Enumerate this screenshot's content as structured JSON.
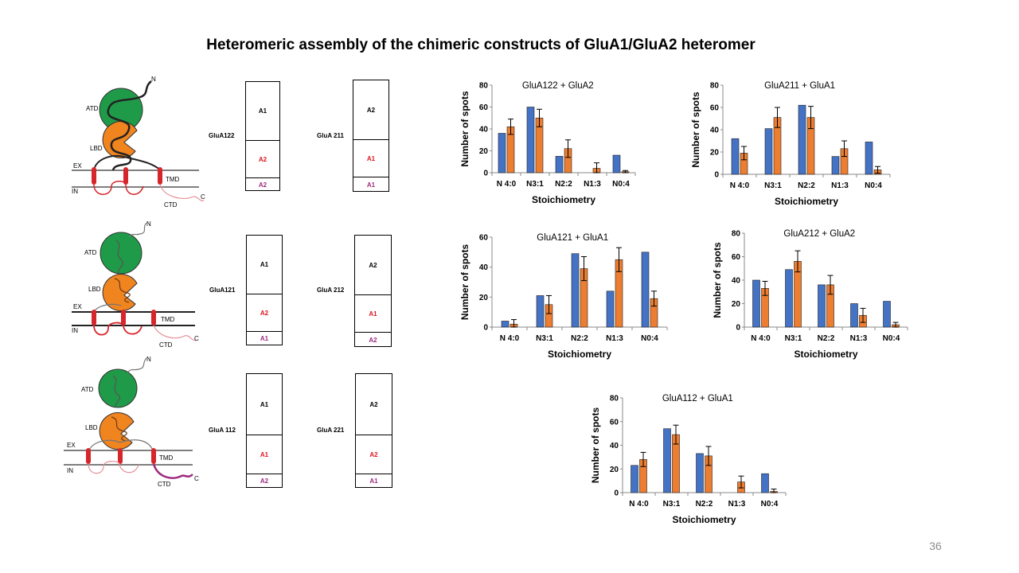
{
  "slide": {
    "title": "Heteromeric assembly of the chimeric constructs of GluA1/GluA2 heteromer",
    "number": "36"
  },
  "schematic_labels": {
    "n": "N",
    "c": "C",
    "atd": "ATD",
    "lbd": "LBD",
    "tmd": "TMD",
    "ctd": "CTD",
    "ex": "EX",
    "in": "IN"
  },
  "colors": {
    "atd": "#1f9a48",
    "lbd": "#f0841f",
    "tmd": "#d6252b",
    "blue_bar": "#4472c4",
    "orange_bar": "#ed7d31",
    "a1_red": "#e0141e",
    "a2_purple": "#9b2b7f"
  },
  "constructs": [
    {
      "name": "GluA122",
      "segments": [
        "A1",
        "A2",
        "A2"
      ]
    },
    {
      "name": "GluA 211",
      "segments": [
        "A2",
        "A1",
        "A1"
      ]
    },
    {
      "name": "GluA121",
      "segments": [
        "A1",
        "A2",
        "A1"
      ]
    },
    {
      "name": "GluA 212",
      "segments": [
        "A2",
        "A1",
        "A2"
      ]
    },
    {
      "name": "GluA 112",
      "segments": [
        "A1",
        "A1",
        "A2"
      ]
    },
    {
      "name": "GluA 221",
      "segments": [
        "A2",
        "A2",
        "A1"
      ]
    }
  ],
  "chart_data": [
    {
      "type": "bar",
      "title": "GluA122  + GluA2",
      "xlabel": "Stoichiometry",
      "ylabel": "Number of spots",
      "categories": [
        "N 4:0",
        "N3:1",
        "N2:2",
        "N1:3",
        "N0:4"
      ],
      "ylim": [
        0,
        80
      ],
      "yticks": [
        0,
        20,
        40,
        60,
        80
      ],
      "series": [
        {
          "values": [
            36,
            60,
            15,
            0,
            16
          ]
        },
        {
          "values": [
            42,
            50,
            22,
            4,
            1
          ],
          "errors": [
            7,
            8,
            8,
            5,
            1
          ]
        }
      ]
    },
    {
      "type": "bar",
      "title": "GluA211  + GluA1",
      "xlabel": "Stoichiometry",
      "ylabel": "Number of spots",
      "categories": [
        "N 4:0",
        "N3:1",
        "N2:2",
        "N1:3",
        "N0:4"
      ],
      "ylim": [
        0,
        80
      ],
      "yticks": [
        0,
        20,
        40,
        60,
        80
      ],
      "series": [
        {
          "values": [
            32,
            41,
            62,
            16,
            29
          ]
        },
        {
          "values": [
            19,
            51,
            51,
            23,
            4
          ],
          "errors": [
            6,
            9,
            10,
            7,
            3
          ]
        }
      ]
    },
    {
      "type": "bar",
      "title": "GluA121  + GluA1",
      "xlabel": "Stoichiometry",
      "ylabel": "Number of spots",
      "categories": [
        "N 4:0",
        "N3:1",
        "N2:2",
        "N1:3",
        "N0:4"
      ],
      "ylim": [
        0,
        60
      ],
      "yticks": [
        0,
        20,
        40,
        60
      ],
      "series": [
        {
          "values": [
            4,
            21,
            49,
            24,
            50
          ]
        },
        {
          "values": [
            2,
            15,
            39,
            45,
            19
          ],
          "errors": [
            3,
            6,
            8,
            8,
            5
          ]
        }
      ]
    },
    {
      "type": "bar",
      "title": "GluA212  + GluA2",
      "xlabel": "Stoichiometry",
      "ylabel": "Number of spots",
      "categories": [
        "N 4:0",
        "N3:1",
        "N2:2",
        "N1:3",
        "N0:4"
      ],
      "ylim": [
        0,
        80
      ],
      "yticks": [
        0,
        20,
        40,
        60,
        80
      ],
      "series": [
        {
          "values": [
            40,
            49,
            36,
            20,
            22
          ]
        },
        {
          "values": [
            33,
            56,
            36,
            10,
            2
          ],
          "errors": [
            6,
            9,
            8,
            6,
            2
          ]
        }
      ]
    },
    {
      "type": "bar",
      "title": "GluA112  + GluA1",
      "xlabel": "Stoichiometry",
      "ylabel": "Number of spots",
      "categories": [
        "N 4:0",
        "N3:1",
        "N2:2",
        "N1:3",
        "N0:4"
      ],
      "ylim": [
        0,
        80
      ],
      "yticks": [
        0,
        20,
        40,
        60,
        80
      ],
      "series": [
        {
          "values": [
            23,
            54,
            33,
            0,
            16
          ]
        },
        {
          "values": [
            28,
            49,
            31,
            9,
            1
          ],
          "errors": [
            6,
            8,
            8,
            5,
            2
          ]
        }
      ]
    }
  ]
}
